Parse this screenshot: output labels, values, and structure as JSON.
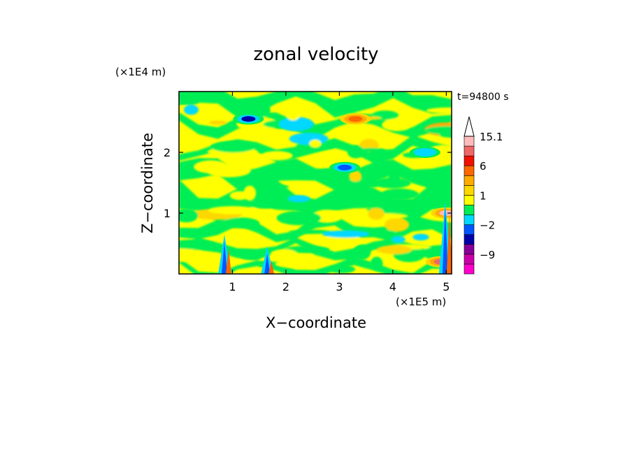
{
  "chart_data": {
    "type": "heatmap",
    "title": "zonal velocity",
    "xlabel": "X−coordinate",
    "ylabel": "Z−coordinate",
    "x_unit": "(×1E5 m)",
    "y_unit": "(×1E4 m)",
    "time_label": "t=94800 s",
    "xlim": [
      0,
      5.1
    ],
    "ylim": [
      0,
      3.0
    ],
    "x_ticks": [
      1,
      2,
      3,
      4,
      5
    ],
    "y_ticks": [
      1,
      2
    ],
    "x_tick_labels": [
      "1",
      "2",
      "3",
      "4",
      "5"
    ],
    "y_tick_labels": [
      "1",
      "2"
    ],
    "colorbar": {
      "levels": [
        -15,
        -12,
        -9,
        -6,
        -4,
        -2,
        -1,
        0,
        1,
        2,
        3,
        6,
        9,
        12,
        15.1
      ],
      "colors": [
        "#ff00cc",
        "#cc00aa",
        "#880099",
        "#0000aa",
        "#0055ff",
        "#00d8ff",
        "#00ee55",
        "#ffff00",
        "#ffd700",
        "#ffaa00",
        "#ff6600",
        "#ee1100",
        "#ee6666",
        "#ffbbbb",
        "#ffffff"
      ],
      "labels": [
        {
          "text": "15.1",
          "value": 15.1
        },
        {
          "text": "6",
          "value": 6
        },
        {
          "text": "1",
          "value": 1
        },
        {
          "text": "−2",
          "value": -2
        },
        {
          "text": "−9",
          "value": -9
        }
      ],
      "extend": "max"
    },
    "field_colors": {
      "neutral_pos": "#ffff00",
      "neutral_neg": "#00ee55",
      "weak_pos": "#ffd700",
      "moderate_pos": "#ffaa00",
      "strong_pos": "#ff6600",
      "very_strong_pos": "#ee1100",
      "weak_neg": "#00d8ff",
      "moderate_neg": "#0055ff",
      "strong_neg": "#0000aa",
      "very_strong_neg": "#880099"
    },
    "features": [
      {
        "kind": "neg",
        "x": 1.3,
        "z": 2.55,
        "value": -6
      },
      {
        "kind": "neg",
        "x": 3.1,
        "z": 1.75,
        "value": -4
      },
      {
        "kind": "neg",
        "x": 4.6,
        "z": 2.0,
        "value": -2
      },
      {
        "kind": "pos",
        "x": 3.3,
        "z": 2.55,
        "value": 3
      },
      {
        "kind": "pos",
        "x": 5.0,
        "z": 1.0,
        "value": 12
      },
      {
        "kind": "pos",
        "x": 4.9,
        "z": 0.2,
        "value": 9
      }
    ]
  }
}
